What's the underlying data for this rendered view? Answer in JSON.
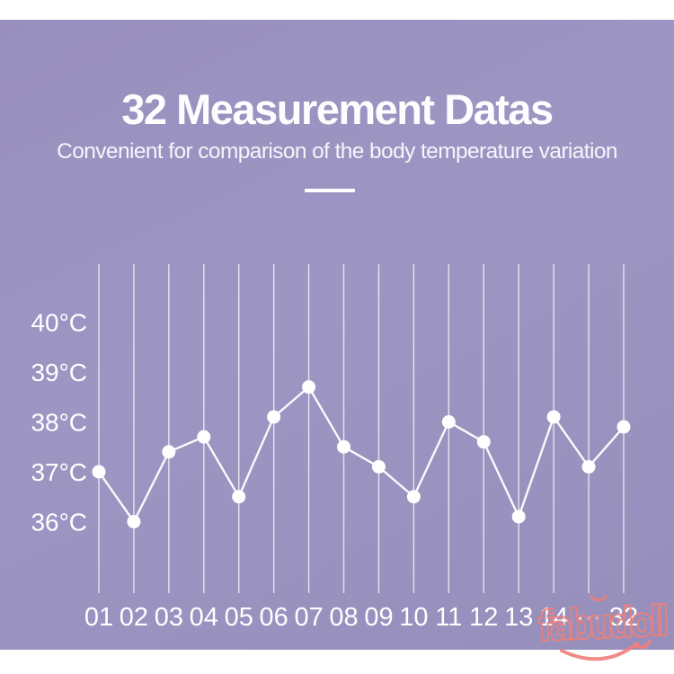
{
  "header": {
    "title": "32 Measurement Datas",
    "subtitle": "Convenient for comparison of the body temperature variation"
  },
  "chart_data": {
    "type": "line",
    "title": "",
    "xlabel": "",
    "ylabel": "",
    "unit": "°C",
    "categories": [
      "01",
      "02",
      "03",
      "04",
      "05",
      "06",
      "07",
      "08",
      "09",
      "10",
      "11",
      "12",
      "13",
      "14",
      "···",
      "32"
    ],
    "values": [
      37.0,
      36.0,
      37.4,
      37.7,
      36.5,
      38.1,
      38.7,
      37.5,
      37.1,
      36.5,
      38.0,
      37.6,
      36.1,
      38.1,
      37.1,
      37.9
    ],
    "series_name": "body temperature",
    "y_ticks": [
      "40°C",
      "39°C",
      "38°C",
      "37°C",
      "36°C"
    ],
    "y_tick_values": [
      40,
      39,
      38,
      37,
      36
    ],
    "ylim": [
      35.3,
      40.6
    ],
    "grid": "vertical-only",
    "legend": "none",
    "marker": "circle",
    "line_color": "#ffffff",
    "grid_color": "#ffffff",
    "label_color": "#ffffff"
  },
  "watermark": {
    "text": "fabudoll",
    "color": "#ee807b"
  },
  "colors": {
    "panel_bg": "#9b94c1",
    "text": "#fdfdff",
    "page_bg": "#ffffff"
  }
}
